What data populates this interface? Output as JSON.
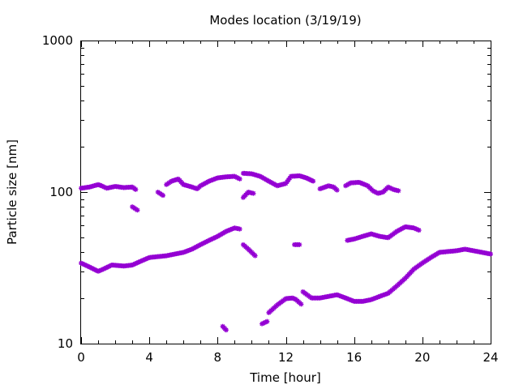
{
  "chart_data": {
    "type": "scatter",
    "title": "Modes location (3/19/19)",
    "xlabel": "Time [hour]",
    "ylabel": "Particle size [nm]",
    "xlim": [
      0,
      24
    ],
    "ylim": [
      10,
      1000
    ],
    "yscale": "log",
    "x_ticks": [
      0,
      4,
      8,
      12,
      16,
      20,
      24
    ],
    "x_tick_labels": [
      "0",
      "4",
      "8",
      "12",
      "16",
      "20",
      "24"
    ],
    "y_ticks": [
      10,
      100,
      1000
    ],
    "y_tick_labels": [
      "10",
      "100",
      "1000"
    ],
    "grid": false,
    "legend": "none",
    "marker_color": "#9400d3",
    "marker": "star",
    "segments": [
      [
        [
          0.0,
          106
        ],
        [
          0.5,
          108
        ],
        [
          1.0,
          112
        ],
        [
          1.2,
          110
        ],
        [
          1.5,
          106
        ],
        [
          2.0,
          109
        ],
        [
          2.5,
          107
        ],
        [
          3.0,
          108
        ],
        [
          3.2,
          104
        ]
      ],
      [
        [
          3.0,
          80
        ],
        [
          3.3,
          76
        ]
      ],
      [
        [
          4.5,
          100
        ],
        [
          4.8,
          95
        ]
      ],
      [
        [
          5.0,
          112
        ],
        [
          5.3,
          118
        ],
        [
          5.7,
          122
        ],
        [
          6.0,
          112
        ],
        [
          6.5,
          108
        ],
        [
          6.8,
          105
        ],
        [
          7.0,
          110
        ],
        [
          7.5,
          118
        ],
        [
          8.0,
          124
        ],
        [
          8.5,
          126
        ],
        [
          9.0,
          127
        ],
        [
          9.3,
          122
        ]
      ],
      [
        [
          9.5,
          133
        ],
        [
          10.0,
          132
        ],
        [
          10.5,
          127
        ],
        [
          11.0,
          118
        ],
        [
          11.5,
          110
        ],
        [
          12.0,
          114
        ],
        [
          12.3,
          127
        ],
        [
          12.8,
          128
        ],
        [
          13.2,
          124
        ],
        [
          13.6,
          118
        ]
      ],
      [
        [
          9.5,
          92
        ],
        [
          9.8,
          100
        ],
        [
          10.1,
          98
        ]
      ],
      [
        [
          14.0,
          105
        ],
        [
          14.5,
          110
        ],
        [
          14.8,
          108
        ],
        [
          15.0,
          103
        ]
      ],
      [
        [
          15.5,
          110
        ],
        [
          15.8,
          115
        ],
        [
          16.3,
          116
        ],
        [
          16.8,
          110
        ],
        [
          17.1,
          102
        ],
        [
          17.4,
          98
        ],
        [
          17.7,
          100
        ],
        [
          18.0,
          108
        ],
        [
          18.3,
          104
        ],
        [
          18.6,
          102
        ]
      ],
      [
        [
          0.0,
          34
        ],
        [
          0.5,
          32
        ],
        [
          1.0,
          30
        ],
        [
          1.3,
          31
        ],
        [
          1.8,
          33
        ],
        [
          2.5,
          32.5
        ],
        [
          3.0,
          33
        ],
        [
          3.5,
          35
        ],
        [
          4.0,
          37
        ],
        [
          4.5,
          37.5
        ],
        [
          5.0,
          38
        ],
        [
          5.5,
          39
        ],
        [
          6.0,
          40
        ],
        [
          6.5,
          42
        ],
        [
          7.0,
          45
        ],
        [
          7.5,
          48
        ],
        [
          8.0,
          51
        ],
        [
          8.5,
          55
        ],
        [
          9.0,
          58
        ],
        [
          9.3,
          57
        ]
      ],
      [
        [
          9.5,
          45
        ],
        [
          9.8,
          42
        ],
        [
          10.2,
          38
        ]
      ],
      [
        [
          12.5,
          45
        ],
        [
          12.8,
          45
        ]
      ],
      [
        [
          15.6,
          48
        ],
        [
          16.0,
          49
        ],
        [
          16.5,
          51
        ],
        [
          17.0,
          53
        ],
        [
          17.5,
          51
        ],
        [
          18.0,
          50
        ],
        [
          18.5,
          55
        ],
        [
          19.0,
          59
        ],
        [
          19.5,
          58
        ],
        [
          19.8,
          56
        ]
      ],
      [
        [
          8.3,
          13
        ],
        [
          8.5,
          12.3
        ]
      ],
      [
        [
          10.6,
          13.5
        ],
        [
          10.9,
          14
        ],
        [
          11.0,
          16
        ],
        [
          11.5,
          18
        ],
        [
          12.0,
          19.8
        ],
        [
          12.4,
          20
        ],
        [
          12.6,
          19.5
        ],
        [
          12.9,
          18.2
        ]
      ],
      [
        [
          13.0,
          22
        ],
        [
          13.5,
          20
        ],
        [
          14.0,
          20
        ],
        [
          14.5,
          20.5
        ],
        [
          15.0,
          21
        ],
        [
          15.5,
          20
        ],
        [
          16.0,
          19
        ],
        [
          16.5,
          19
        ],
        [
          17.0,
          19.5
        ],
        [
          17.5,
          20.5
        ],
        [
          18.0,
          21.5
        ],
        [
          18.5,
          24
        ],
        [
          19.0,
          27
        ],
        [
          19.5,
          31
        ],
        [
          20.0,
          34
        ],
        [
          20.5,
          37
        ],
        [
          21.0,
          40
        ],
        [
          21.5,
          40.5
        ],
        [
          22.0,
          41
        ],
        [
          22.5,
          42
        ],
        [
          23.0,
          41
        ],
        [
          23.5,
          40
        ],
        [
          24.0,
          39
        ]
      ]
    ]
  }
}
